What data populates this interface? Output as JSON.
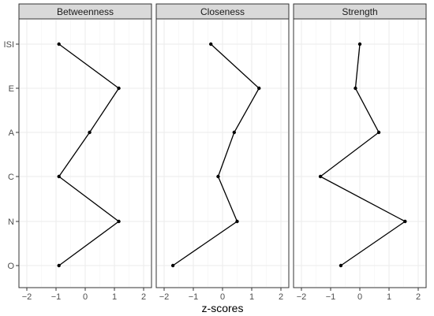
{
  "chart_data": {
    "type": "line",
    "xlabel": "z-scores",
    "ylabel": "",
    "categories": [
      "ISI",
      "E",
      "A",
      "C",
      "N",
      "O"
    ],
    "xlim": [
      -2,
      2
    ],
    "xticks": [
      "−2",
      "−1",
      "0",
      "1",
      "2"
    ],
    "grid": true,
    "legend": "none",
    "panels": [
      {
        "title": "Betweenness",
        "values": [
          -0.9,
          1.15,
          0.15,
          -0.9,
          1.15,
          -0.9
        ]
      },
      {
        "title": "Closeness",
        "values": [
          -0.4,
          1.25,
          0.4,
          -0.15,
          0.5,
          -1.7
        ]
      },
      {
        "title": "Strength",
        "values": [
          0.0,
          -0.15,
          0.65,
          -1.35,
          1.55,
          -0.65
        ]
      }
    ]
  }
}
